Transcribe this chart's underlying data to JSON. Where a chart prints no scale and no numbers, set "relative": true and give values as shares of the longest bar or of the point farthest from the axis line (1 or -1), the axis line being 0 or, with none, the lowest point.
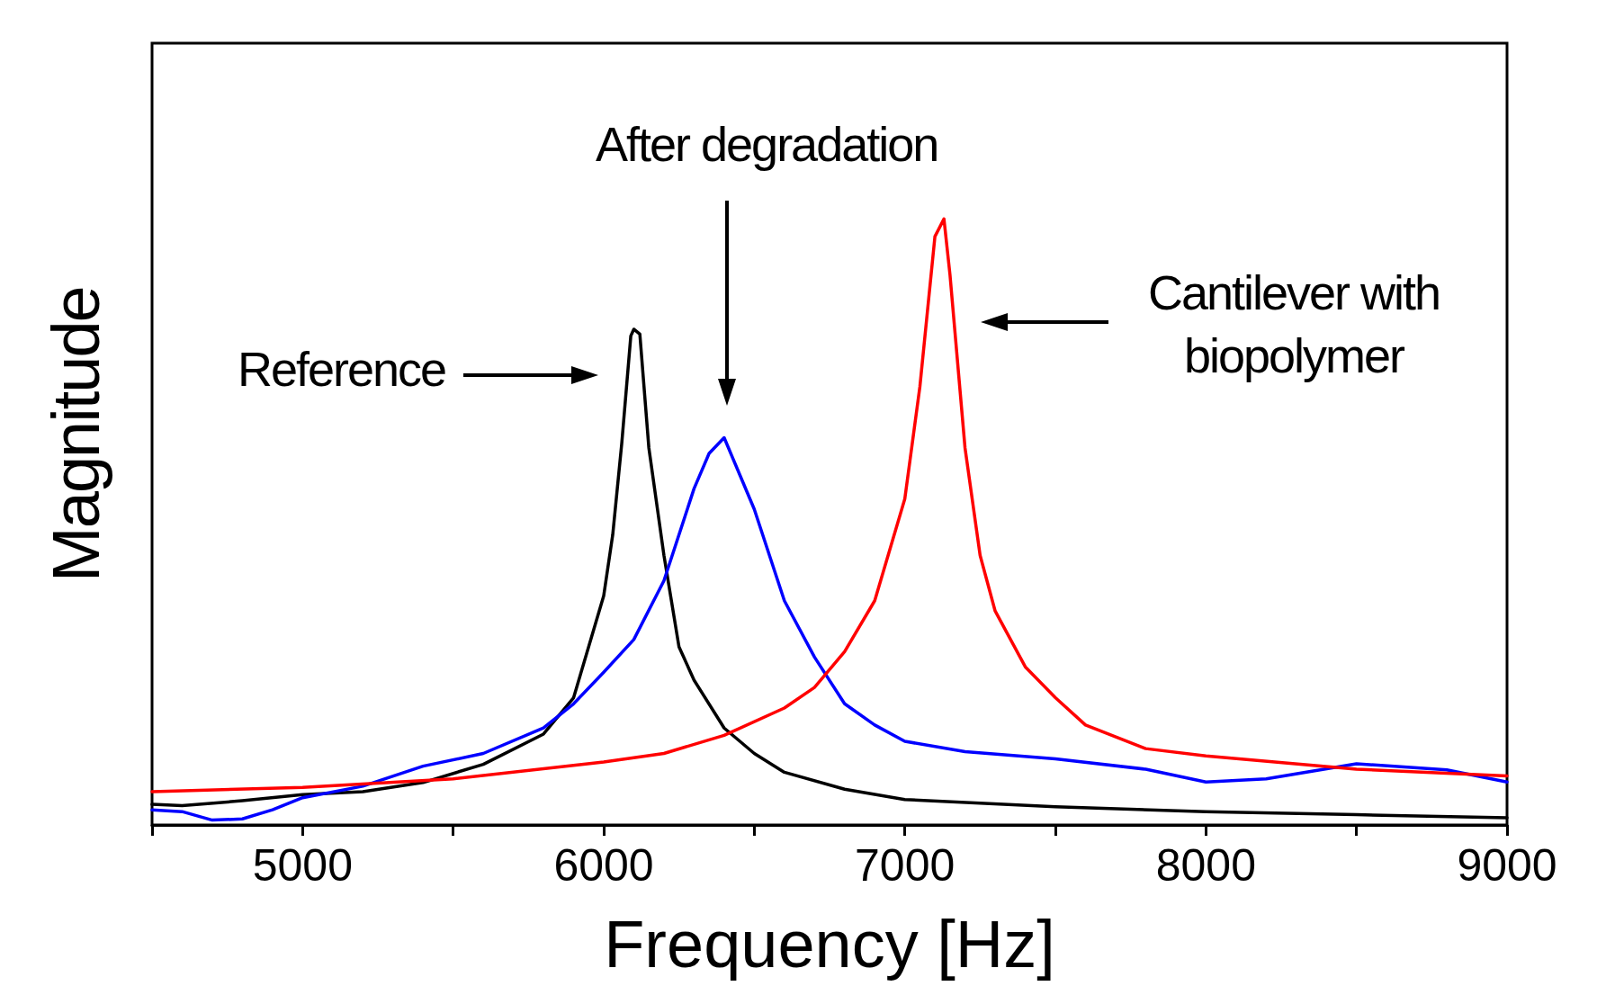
{
  "chart_data": {
    "type": "line",
    "relative": true,
    "xlabel": "Frequency [Hz]",
    "ylabel": "Magnitude",
    "xlim": [
      4500,
      9000
    ],
    "xticks": [
      {
        "value": 4500,
        "label": null
      },
      5000,
      {
        "value": 5500,
        "label": null
      },
      6000,
      {
        "value": 6500,
        "label": null
      },
      7000,
      {
        "value": 7500,
        "label": null
      },
      8000,
      {
        "value": 8500,
        "label": null
      },
      9000
    ],
    "grid": false,
    "marker": "none",
    "line_style": "solid",
    "series": [
      {
        "color": "#000000",
        "x": [
          4500,
          4600,
          4800,
          5000,
          5200,
          5400,
          5600,
          5800,
          5900,
          6000,
          6030,
          6060,
          6090,
          6100,
          6120,
          6150,
          6200,
          6250,
          6300,
          6400,
          6500,
          6600,
          6800,
          7000,
          7500,
          8000,
          8500,
          9000
        ],
        "values": [
          0.034,
          0.032,
          0.04,
          0.05,
          0.055,
          0.07,
          0.1,
          0.15,
          0.21,
          0.378,
          0.479,
          0.63,
          0.807,
          0.818,
          0.81,
          0.622,
          0.445,
          0.294,
          0.239,
          0.16,
          0.118,
          0.087,
          0.059,
          0.042,
          0.03,
          0.022,
          0.017,
          0.012
        ]
      },
      {
        "color": "#0000ff",
        "x": [
          4500,
          4600,
          4700,
          4800,
          4900,
          5000,
          5200,
          5400,
          5600,
          5800,
          5900,
          6000,
          6100,
          6200,
          6300,
          6350,
          6400,
          6450,
          6500,
          6600,
          6700,
          6800,
          6900,
          7000,
          7200,
          7500,
          7800,
          8000,
          8200,
          8500,
          8800,
          9000
        ],
        "values": [
          0.025,
          0.022,
          0.008,
          0.01,
          0.025,
          0.045,
          0.064,
          0.097,
          0.118,
          0.16,
          0.2,
          0.252,
          0.306,
          0.403,
          0.555,
          0.613,
          0.639,
          0.58,
          0.521,
          0.37,
          0.277,
          0.2,
          0.165,
          0.138,
          0.121,
          0.109,
          0.092,
          0.071,
          0.076,
          0.101,
          0.091,
          0.071
        ]
      },
      {
        "color": "#ff0000",
        "x": [
          4500,
          5000,
          5500,
          6000,
          6200,
          6400,
          6600,
          6700,
          6800,
          6900,
          7000,
          7050,
          7100,
          7130,
          7150,
          7200,
          7250,
          7300,
          7400,
          7500,
          7600,
          7800,
          8000,
          8500,
          9000
        ],
        "values": [
          0.055,
          0.062,
          0.076,
          0.104,
          0.118,
          0.148,
          0.193,
          0.227,
          0.286,
          0.37,
          0.538,
          0.723,
          0.971,
          1,
          0.908,
          0.622,
          0.445,
          0.353,
          0.261,
          0.21,
          0.165,
          0.126,
          0.114,
          0.092,
          0.081
        ]
      }
    ],
    "annotations": [
      "Reference",
      "After degradation",
      "Cantilever with biopolymer"
    ]
  }
}
